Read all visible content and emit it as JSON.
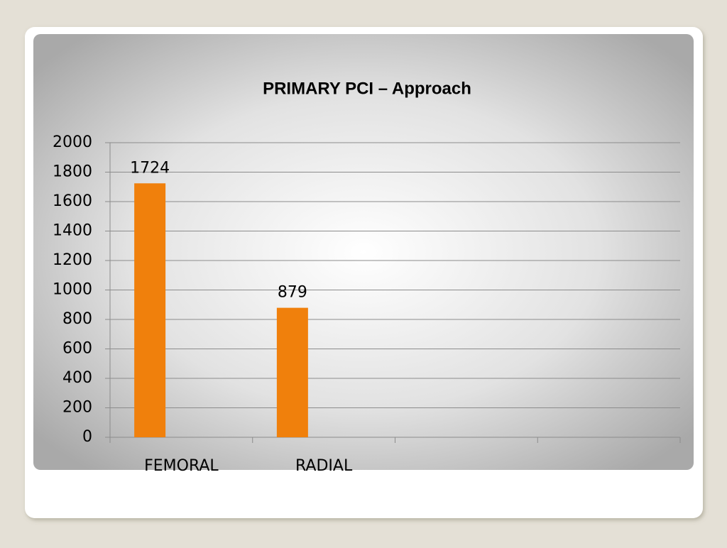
{
  "chart_data": {
    "type": "bar",
    "title": "PRIMARY PCI – Approach",
    "categories": [
      "FEMORAL",
      "RADIAL",
      null,
      null
    ],
    "values": [
      1724,
      879,
      null,
      null
    ],
    "color": "#f0800c",
    "ylim": [
      0,
      2000
    ],
    "yticks": [
      0,
      200,
      400,
      600,
      800,
      1000,
      1200,
      1400,
      1600,
      1800,
      2000
    ],
    "grid": true
  }
}
